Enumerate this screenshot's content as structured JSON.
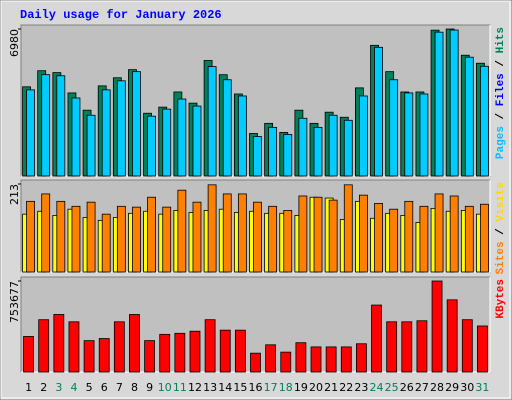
{
  "chart_data": {
    "type": "bar",
    "title": "Daily usage for January 2026",
    "categories": [
      "1",
      "2",
      "3",
      "4",
      "5",
      "6",
      "7",
      "8",
      "9",
      "10",
      "11",
      "12",
      "13",
      "14",
      "15",
      "16",
      "17",
      "18",
      "19",
      "20",
      "21",
      "22",
      "23",
      "24",
      "25",
      "26",
      "27",
      "28",
      "29",
      "30",
      "31"
    ],
    "category_colors": [
      "#000000",
      "#000000",
      "#00805c",
      "#00805c",
      "#000000",
      "#000000",
      "#000000",
      "#000000",
      "#000000",
      "#00805c",
      "#00805c",
      "#000000",
      "#000000",
      "#000000",
      "#000000",
      "#000000",
      "#00805c",
      "#00805c",
      "#000000",
      "#000000",
      "#000000",
      "#000000",
      "#000000",
      "#00805c",
      "#00805c",
      "#000000",
      "#000000",
      "#000000",
      "#000000",
      "#000000",
      "#00805c"
    ],
    "panels": [
      {
        "ylim": [
          0,
          6980
        ],
        "yticks": [
          6980
        ],
        "side_label": [
          {
            "text": "Pages",
            "color": "#00c0ff"
          },
          {
            "text": " / ",
            "color": "#000000"
          },
          {
            "text": "Files",
            "color": "#0000ff"
          },
          {
            "text": " / ",
            "color": "#000000"
          },
          {
            "text": "Hits",
            "color": "#00805c"
          }
        ],
        "series": [
          {
            "name": "Hits",
            "color": "#00805c",
            "values": [
              4235,
              5000,
              4910,
              3945,
              3125,
              4280,
              4665,
              5050,
              2980,
              3270,
              3990,
              3460,
              5485,
              4810,
              3895,
              2020,
              2500,
              2070,
              3125,
              2500,
              3030,
              2790,
              4185,
              6205,
              4955,
              3990,
              3990,
              6925,
              6980,
              5735,
              5355
            ]
          },
          {
            "name": "Files",
            "color": "#00ccff",
            "values": [
              4090,
              4810,
              4760,
              3705,
              2885,
              4090,
              4520,
              4955,
              2840,
              3175,
              3655,
              3320,
              5195,
              4570,
              3800,
              1875,
              2310,
              1970,
              2740,
              2310,
              2885,
              2645,
              3800,
              6110,
              4570,
              3945,
              3895,
              6830,
              6930,
              5640,
              5210
            ]
          }
        ]
      },
      {
        "ylim": [
          0,
          213
        ],
        "yticks": [
          213
        ],
        "side_label": [
          {
            "text": "Sites",
            "color": "#ff8000"
          },
          {
            "text": " / ",
            "color": "#000000"
          },
          {
            "text": "Visits",
            "color": "#ffd800"
          }
        ],
        "series": [
          {
            "name": "Visits",
            "color": "#ffff00",
            "values": [
              140,
              147,
              137,
              152,
              132,
              125,
              132,
              142,
              147,
              140,
              149,
              144,
              149,
              152,
              144,
              147,
              142,
              142,
              137,
              181,
              179,
              127,
              171,
              130,
              142,
              137,
              120,
              154,
              147,
              149,
              140
            ]
          },
          {
            "name": "Sites",
            "color": "#ff8000",
            "values": [
              171,
              189,
              171,
              159,
              169,
              140,
              159,
              157,
              181,
              157,
              198,
              169,
              211,
              189,
              189,
              169,
              159,
              149,
              184,
              181,
              174,
              211,
              186,
              166,
              152,
              171,
              159,
              189,
              184,
              159,
              164
            ]
          }
        ]
      },
      {
        "ylim": [
          0,
          753677
        ],
        "yticks": [
          753677
        ],
        "side_label": [
          {
            "text": "KBytes",
            "color": "#ff0000"
          }
        ],
        "series": [
          {
            "name": "KBytes",
            "color": "#ff0000",
            "values": [
              294540,
              433150,
              476460,
              415820,
              259890,
              277220,
              415820,
              476460,
              259890,
              311870,
              320530,
              337860,
              433150,
              346520,
              346520,
              155930,
              225240,
              164600,
              242560,
              207910,
              207910,
              207910,
              233900,
              554430,
              415820,
              415820,
              424490,
              753677,
              597750,
              433150,
              381170
            ]
          }
        ]
      }
    ]
  }
}
